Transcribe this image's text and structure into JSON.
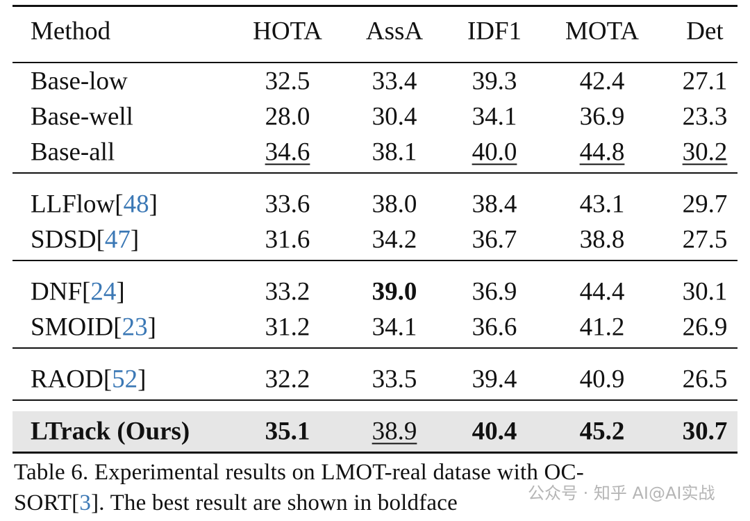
{
  "table": {
    "header": [
      "Method",
      "HOTA",
      "AssA",
      "IDF1",
      "MOTA",
      "Det"
    ],
    "groups": [
      [
        {
          "method": [
            "Base-low"
          ],
          "cells": [
            "32.5",
            "33.4",
            "39.3",
            "42.4",
            "27.1"
          ],
          "bold": [],
          "underline": []
        },
        {
          "method": [
            "Base-well"
          ],
          "cells": [
            "28.0",
            "30.4",
            "34.1",
            "36.9",
            "23.3"
          ],
          "bold": [],
          "underline": []
        },
        {
          "method": [
            "Base-all"
          ],
          "cells": [
            "34.6",
            "38.1",
            "40.0",
            "44.8",
            "30.2"
          ],
          "bold": [],
          "underline": [
            0,
            2,
            3,
            4
          ]
        }
      ],
      [
        {
          "method": [
            "LLFlow[",
            "48",
            "]"
          ],
          "cells": [
            "33.6",
            "38.0",
            "38.4",
            "43.1",
            "29.7"
          ],
          "bold": [],
          "underline": []
        },
        {
          "method": [
            "SDSD[",
            "47",
            "]"
          ],
          "cells": [
            "31.6",
            "34.2",
            "36.7",
            "38.8",
            "27.5"
          ],
          "bold": [],
          "underline": []
        }
      ],
      [
        {
          "method": [
            "DNF[",
            "24",
            "]"
          ],
          "cells": [
            "33.2",
            "39.0",
            "36.9",
            "44.4",
            "30.1"
          ],
          "bold": [
            1
          ],
          "underline": []
        },
        {
          "method": [
            "SMOID[",
            "23",
            "]"
          ],
          "cells": [
            "31.2",
            "34.1",
            "36.6",
            "41.2",
            "26.9"
          ],
          "bold": [],
          "underline": []
        }
      ],
      [
        {
          "method": [
            "RAOD[",
            "52",
            "]"
          ],
          "cells": [
            "32.2",
            "33.5",
            "39.4",
            "40.9",
            "26.5"
          ],
          "bold": [],
          "underline": []
        }
      ],
      [
        {
          "method": [
            "LTrack (Ours)"
          ],
          "cells": [
            "35.1",
            "38.9",
            "40.4",
            "45.2",
            "30.7"
          ],
          "bold": [
            0,
            2,
            3,
            4
          ],
          "underline": [
            1
          ],
          "method_bold": true,
          "shaded": true
        }
      ]
    ]
  },
  "caption": [
    [
      "Table 6.  Experimental results on LMOT-real datase with OC-"
    ],
    [
      "SORT[",
      "3",
      "]. The best result are shown in boldface"
    ]
  ],
  "watermark": "公众号 · 知乎 AI@AI实战"
}
